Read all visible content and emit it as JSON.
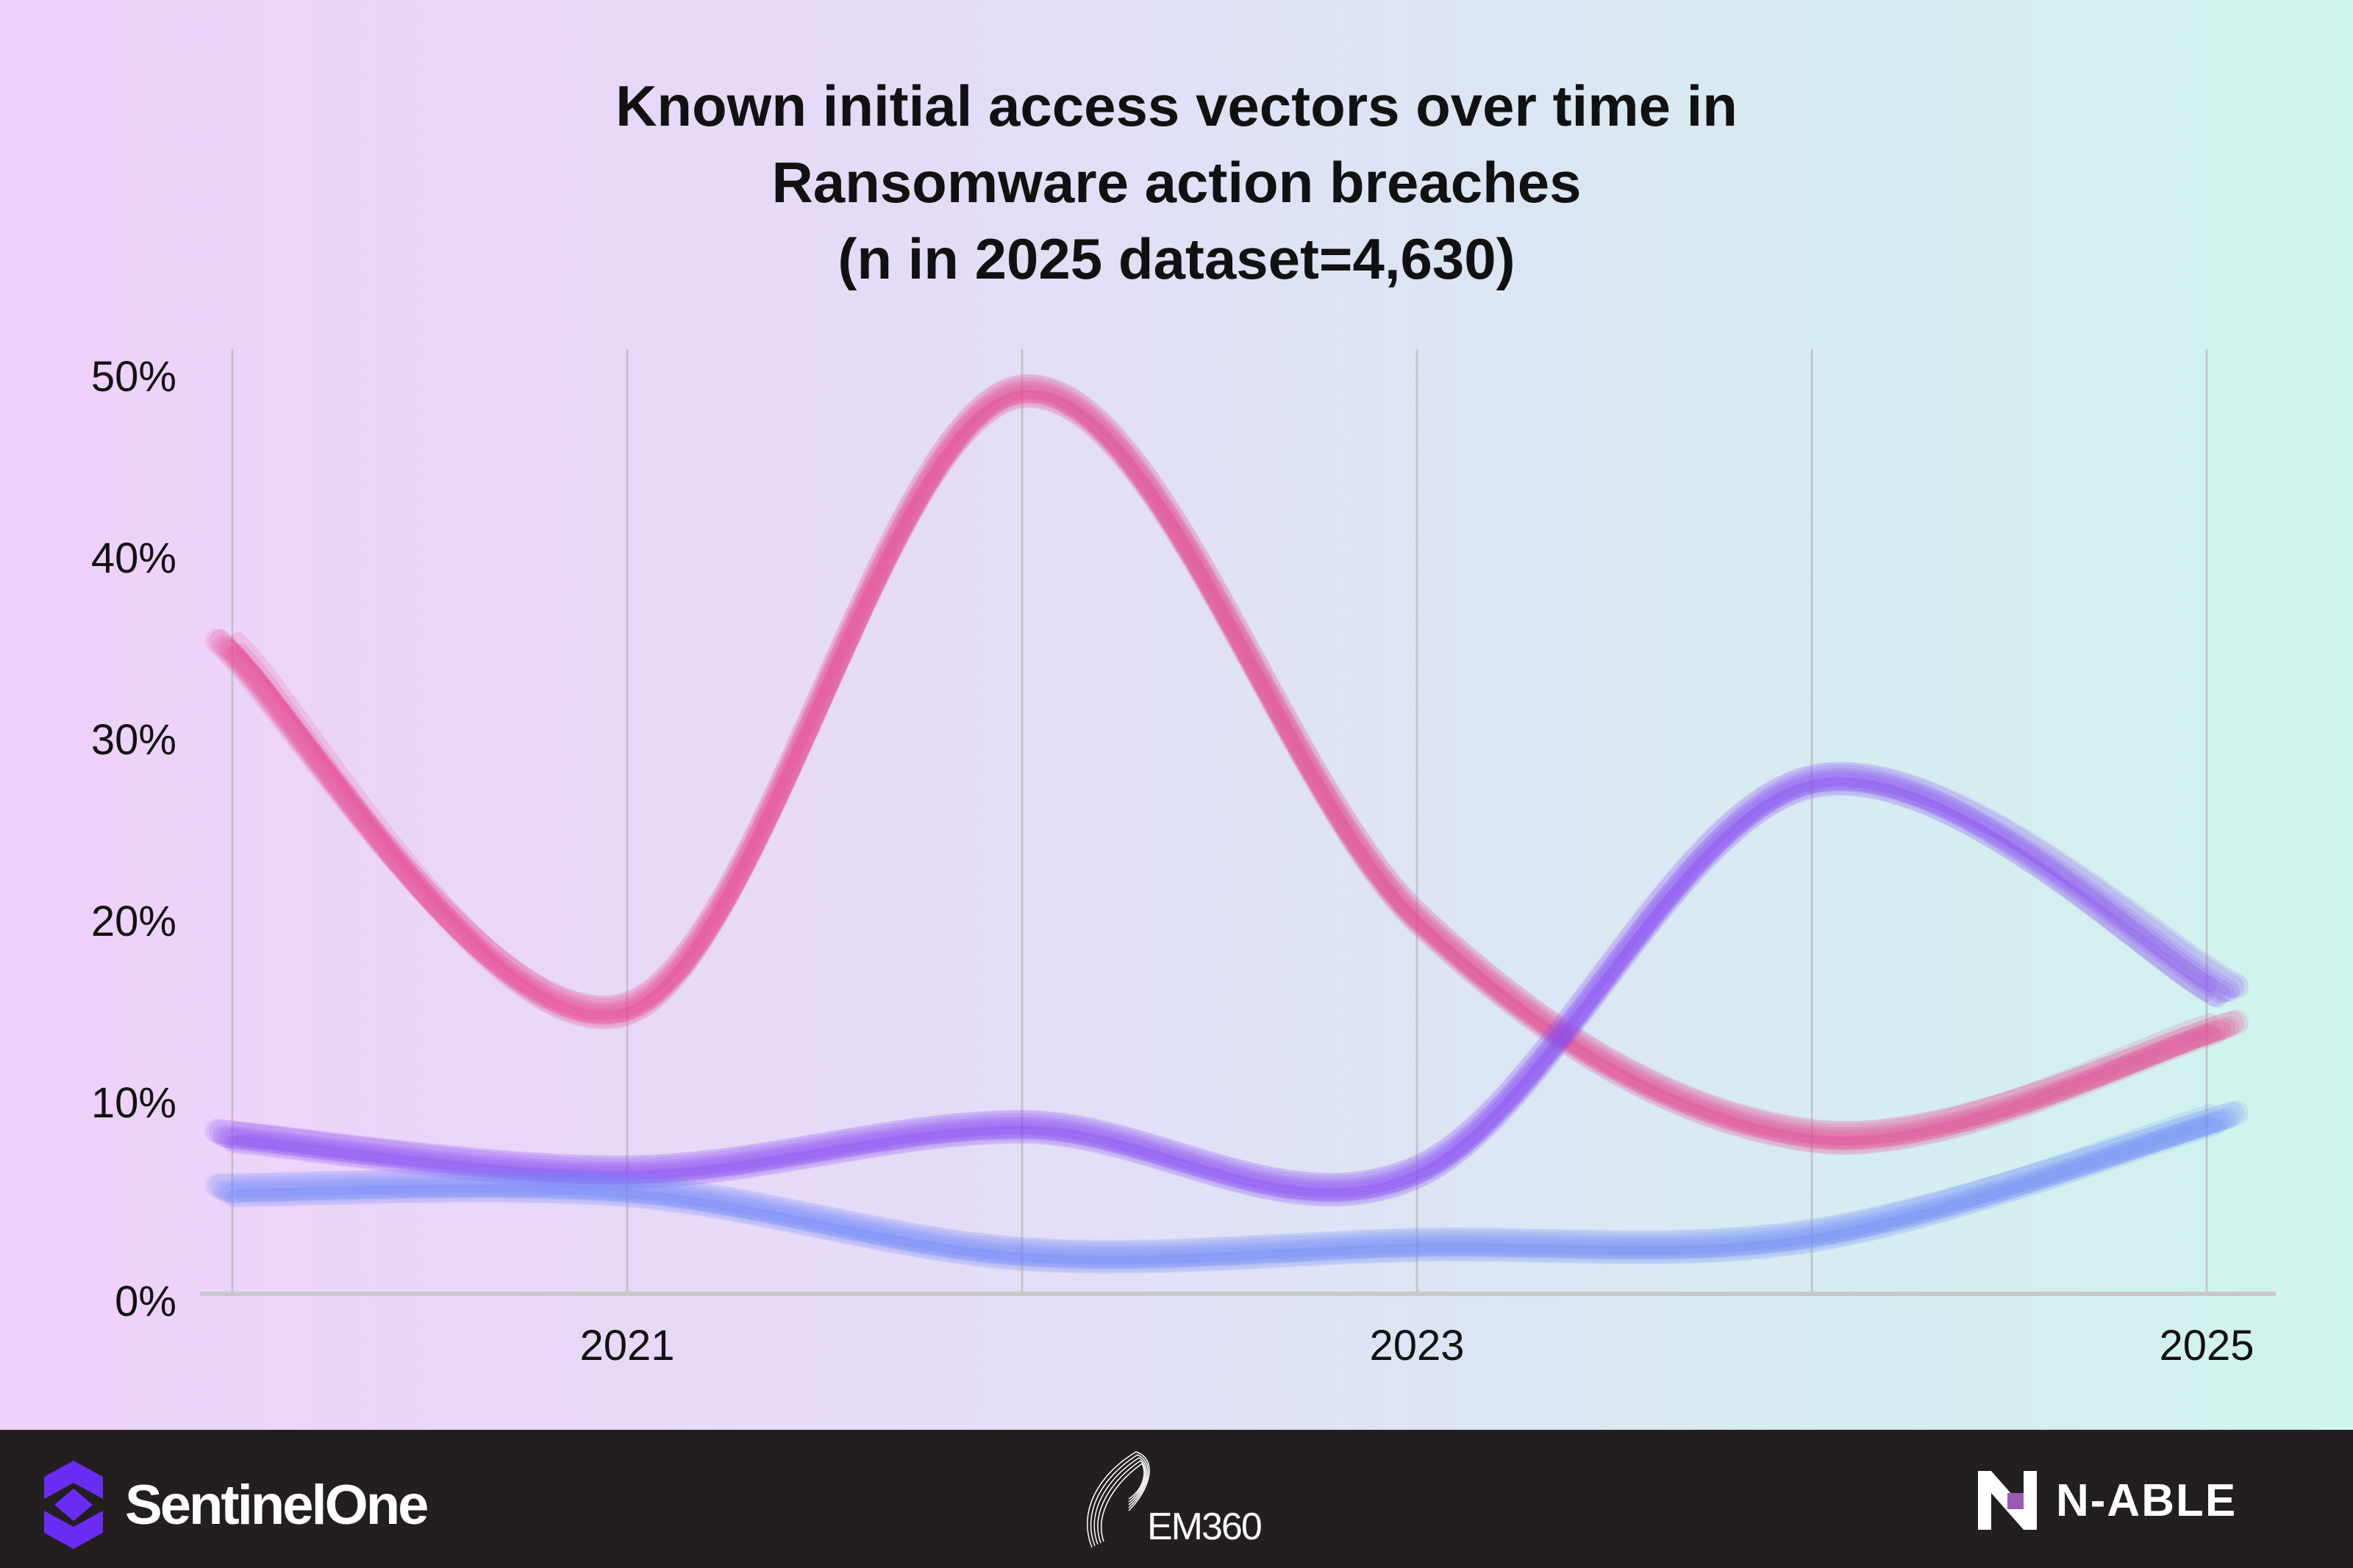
{
  "chart_data": {
    "type": "line",
    "title": [
      "Known initial access vectors over time in",
      "Ransomware action breaches",
      "(n in 2025 dataset=4,630)"
    ],
    "x": [
      2020,
      2021,
      2022,
      2023,
      2024,
      2025
    ],
    "x_tick_labels": [
      "2021",
      "2023",
      "2025"
    ],
    "y_tick_labels": [
      "0%",
      "10%",
      "20%",
      "30%",
      "40%",
      "50%"
    ],
    "ylim": [
      0,
      50
    ],
    "grid": "vertical",
    "legend": "none",
    "series": [
      {
        "color": "#e8478f",
        "values": [
          35,
          15,
          49,
          20,
          8,
          14
        ]
      },
      {
        "color": "#8b4cf0",
        "values": [
          8,
          6,
          8.5,
          6,
          27.5,
          16
        ]
      },
      {
        "color": "#6f86f7",
        "values": [
          5,
          5,
          1.5,
          2,
          2.5,
          9
        ]
      }
    ]
  },
  "footer": {
    "logos": [
      "SentinelOne",
      "EM360",
      "N-ABLE"
    ]
  }
}
